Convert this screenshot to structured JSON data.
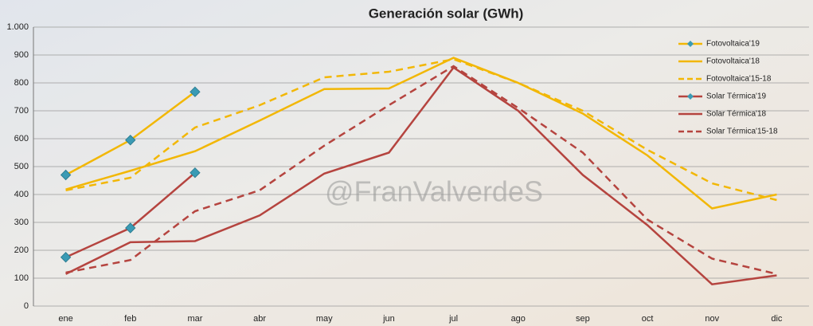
{
  "chart_data": {
    "type": "line",
    "title": "Generación solar (GWh)",
    "annotation": "@FranValverdeS",
    "categories": [
      "ene",
      "feb",
      "mar",
      "abr",
      "may",
      "jun",
      "jul",
      "ago",
      "sep",
      "oct",
      "nov",
      "dic"
    ],
    "ylim": [
      0,
      1000
    ],
    "yticks": [
      0,
      100,
      200,
      300,
      400,
      500,
      600,
      700,
      800,
      900,
      {
        "value": 1000,
        "label": "1.000"
      }
    ],
    "grid": true,
    "legend": "top-right",
    "series": [
      {
        "name": "Fotovoltaica'19",
        "color": "#f2b705",
        "dash": false,
        "marker": true,
        "values": [
          470,
          595,
          768,
          null,
          null,
          null,
          null,
          null,
          null,
          null,
          null,
          null
        ]
      },
      {
        "name": "Fotovoltaica'18",
        "color": "#f2b705",
        "dash": false,
        "marker": false,
        "values": [
          418,
          485,
          555,
          665,
          778,
          780,
          890,
          800,
          690,
          540,
          350,
          400
        ]
      },
      {
        "name": "Fotovoltaica'15-18",
        "color": "#f2b705",
        "dash": true,
        "marker": false,
        "values": [
          415,
          460,
          640,
          720,
          820,
          840,
          885,
          800,
          700,
          560,
          440,
          380
        ]
      },
      {
        "name": "Solar Térmica'19",
        "color": "#b5443f",
        "dash": false,
        "marker": true,
        "values": [
          175,
          280,
          478,
          null,
          null,
          null,
          null,
          null,
          null,
          null,
          null,
          null
        ]
      },
      {
        "name": "Solar Térmica'18",
        "color": "#b5443f",
        "dash": false,
        "marker": false,
        "values": [
          115,
          229,
          233,
          325,
          475,
          550,
          855,
          700,
          470,
          290,
          78,
          110
        ]
      },
      {
        "name": "Solar Térmica'15-18",
        "color": "#b5443f",
        "dash": true,
        "marker": false,
        "values": [
          120,
          165,
          340,
          415,
          575,
          720,
          860,
          710,
          550,
          310,
          170,
          115
        ]
      }
    ]
  }
}
